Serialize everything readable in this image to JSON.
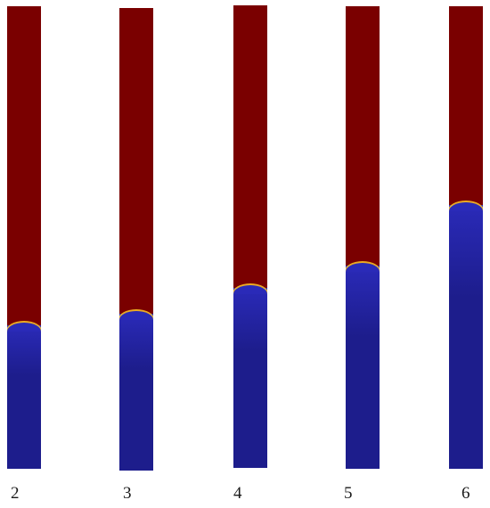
{
  "colors": {
    "upper_fluid": "#7a0000",
    "lower_fluid": "#1d1d8c",
    "lower_fluid_interface": "#2a2ab8",
    "interface_highlight": "#ffc828",
    "background": "#ffffff"
  },
  "frames": [
    {
      "label": "2",
      "lower_fluid_fraction": 0.31
    },
    {
      "label": "3",
      "lower_fluid_fraction": 0.34
    },
    {
      "label": "4",
      "lower_fluid_fraction": 0.39
    },
    {
      "label": "5",
      "lower_fluid_fraction": 0.44
    },
    {
      "label": "6",
      "lower_fluid_fraction": 0.57
    }
  ]
}
